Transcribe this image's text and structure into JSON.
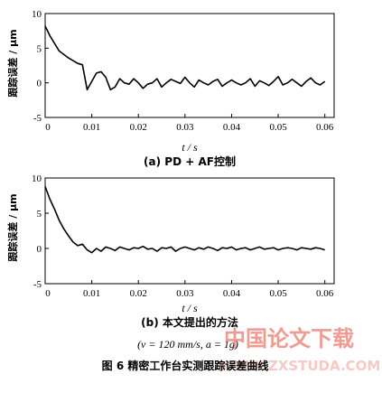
{
  "chart_data": [
    {
      "type": "line",
      "subtitle": "(a) PD + AF控制",
      "xlabel": "t / s",
      "ylabel": "跟踪误差 / μm",
      "xlim": [
        0,
        0.062
      ],
      "ylim": [
        -5,
        10
      ],
      "xticks": [
        "0",
        "0.01",
        "0.02",
        "0.03",
        "0.04",
        "0.05",
        "0.06"
      ],
      "xtick_values": [
        0,
        0.01,
        0.02,
        0.03,
        0.04,
        0.05,
        0.06
      ],
      "yticks": [
        "10",
        "5",
        "0",
        "-5"
      ],
      "ytick_values": [
        10,
        5,
        0,
        -5
      ],
      "grid": false,
      "x": [
        0,
        0.001,
        0.003,
        0.005,
        0.007,
        0.008,
        0.009,
        0.01,
        0.011,
        0.012,
        0.013,
        0.014,
        0.015,
        0.016,
        0.017,
        0.018,
        0.019,
        0.02,
        0.021,
        0.022,
        0.023,
        0.024,
        0.025,
        0.026,
        0.027,
        0.028,
        0.029,
        0.03,
        0.031,
        0.032,
        0.033,
        0.034,
        0.035,
        0.036,
        0.037,
        0.038,
        0.039,
        0.04,
        0.041,
        0.042,
        0.043,
        0.044,
        0.045,
        0.046,
        0.047,
        0.048,
        0.049,
        0.05,
        0.051,
        0.052,
        0.053,
        0.054,
        0.055,
        0.056,
        0.057,
        0.058,
        0.059,
        0.06
      ],
      "values": [
        8.2,
        6.8,
        4.6,
        3.6,
        2.8,
        2.6,
        -1.0,
        0.2,
        1.4,
        1.6,
        0.8,
        -1.0,
        -0.6,
        0.6,
        0.0,
        -0.2,
        0.6,
        0.0,
        -0.8,
        -0.2,
        0.0,
        0.6,
        -0.6,
        0.0,
        0.5,
        0.2,
        -0.1,
        0.8,
        0.0,
        -0.6,
        0.4,
        0.0,
        -0.3,
        0.2,
        0.5,
        -0.5,
        0.0,
        0.4,
        0.0,
        -0.3,
        0.0,
        0.6,
        -0.5,
        0.3,
        0.0,
        -0.4,
        0.2,
        0.9,
        -0.3,
        0.0,
        0.5,
        0.0,
        -0.5,
        0.2,
        0.7,
        0.0,
        -0.3,
        0.2
      ]
    },
    {
      "type": "line",
      "subtitle": "(b) 本文提出的方法",
      "xlabel": "t / s",
      "ylabel": "跟踪误差 / μm",
      "xlim": [
        0,
        0.062
      ],
      "ylim": [
        -5,
        10
      ],
      "xticks": [
        "0",
        "0.01",
        "0.02",
        "0.03",
        "0.04",
        "0.05",
        "0.06"
      ],
      "xtick_values": [
        0,
        0.01,
        0.02,
        0.03,
        0.04,
        0.05,
        0.06
      ],
      "yticks": [
        "10",
        "5",
        "0",
        "-5"
      ],
      "ytick_values": [
        10,
        5,
        0,
        -5
      ],
      "grid": false,
      "x": [
        0,
        0.001,
        0.002,
        0.003,
        0.004,
        0.005,
        0.006,
        0.007,
        0.008,
        0.009,
        0.01,
        0.011,
        0.012,
        0.013,
        0.014,
        0.015,
        0.016,
        0.017,
        0.018,
        0.019,
        0.02,
        0.021,
        0.022,
        0.023,
        0.024,
        0.025,
        0.026,
        0.027,
        0.028,
        0.029,
        0.03,
        0.031,
        0.032,
        0.033,
        0.034,
        0.035,
        0.036,
        0.037,
        0.038,
        0.039,
        0.04,
        0.041,
        0.042,
        0.043,
        0.044,
        0.045,
        0.046,
        0.047,
        0.048,
        0.049,
        0.05,
        0.051,
        0.052,
        0.053,
        0.054,
        0.055,
        0.056,
        0.057,
        0.058,
        0.059,
        0.06
      ],
      "values": [
        8.8,
        7.0,
        5.6,
        4.0,
        2.8,
        1.8,
        0.9,
        0.4,
        0.6,
        -0.2,
        -0.6,
        0.0,
        -0.4,
        0.2,
        0.0,
        -0.3,
        0.2,
        0.0,
        -0.2,
        0.1,
        0.0,
        0.3,
        -0.1,
        0.0,
        -0.4,
        0.1,
        0.0,
        0.2,
        -0.4,
        0.0,
        0.2,
        0.0,
        -0.2,
        0.1,
        -0.1,
        0.2,
        0.0,
        -0.3,
        0.1,
        0.0,
        0.2,
        -0.2,
        0.0,
        0.1,
        -0.2,
        0.0,
        0.2,
        -0.1,
        0.0,
        0.1,
        -0.2,
        0.0,
        0.1,
        0.0,
        -0.2,
        0.1,
        0.0,
        -0.1,
        0.1,
        0.0,
        -0.2
      ]
    }
  ],
  "conditions": "(v = 120 mm/s,  a = 1g)",
  "caption": "图 6   精密工作台实测跟踪误差曲线",
  "watermark": {
    "text_cn": "中国论文下载",
    "text_en": "WWW.ZXSTUDA.COM",
    "color": "#e24a3a"
  }
}
